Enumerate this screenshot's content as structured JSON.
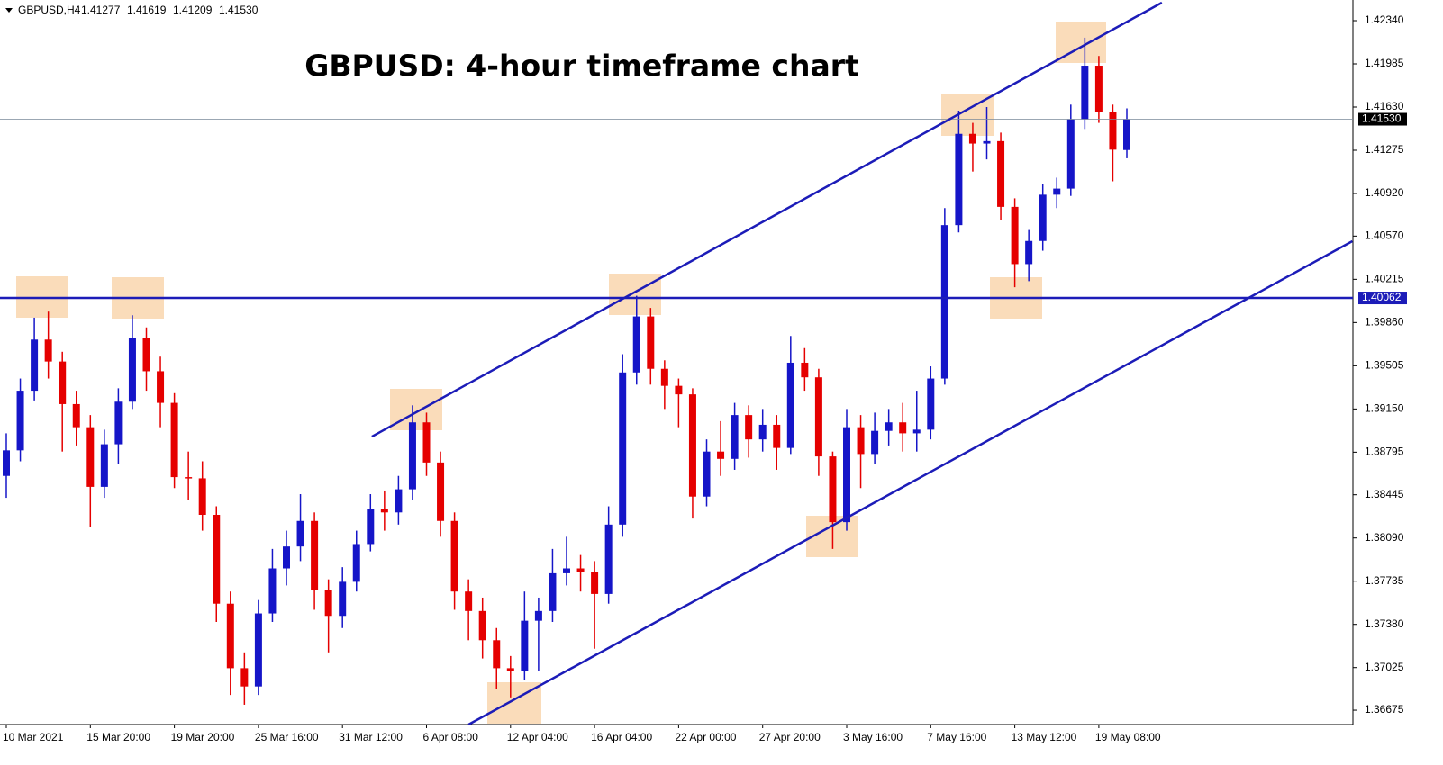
{
  "chart_data": {
    "type": "candlestick",
    "title": "GBPUSD: 4-hour timeframe chart",
    "header": [
      "GBPUSD,H4",
      "1.41277",
      "1.41619",
      "1.41209",
      "1.41530"
    ],
    "up_color": "#1515c8",
    "down_color": "#e50000",
    "categories": [
      "10 Mar 2021",
      null,
      null,
      null,
      null,
      null,
      "15 Mar 20:00",
      null,
      null,
      null,
      null,
      null,
      "19 Mar 20:00",
      null,
      null,
      null,
      null,
      null,
      "25 Mar 16:00",
      null,
      null,
      null,
      null,
      null,
      "31 Mar 12:00",
      null,
      null,
      null,
      null,
      null,
      "6 Apr 08:00",
      null,
      null,
      null,
      null,
      null,
      "12 Apr 04:00",
      null,
      null,
      null,
      null,
      null,
      "16 Apr 04:00",
      null,
      null,
      null,
      null,
      null,
      "22 Apr 00:00",
      null,
      null,
      null,
      null,
      null,
      "27 Apr 20:00",
      null,
      null,
      null,
      null,
      null,
      "3 May 16:00",
      null,
      null,
      null,
      null,
      null,
      "7 May 16:00",
      null,
      null,
      null,
      null,
      null,
      "13 May 12:00",
      null,
      null,
      null,
      null,
      null,
      "19 May 08:00",
      null,
      null
    ],
    "open": [
      1.386,
      1.3881,
      1.393,
      1.3972,
      1.3954,
      1.3919,
      1.39,
      1.3851,
      1.3886,
      1.3921,
      1.3973,
      1.3946,
      1.392,
      1.3859,
      1.3858,
      1.3828,
      1.3755,
      1.3702,
      1.3687,
      1.3747,
      1.3784,
      1.3802,
      1.3823,
      1.3766,
      1.3745,
      1.3773,
      1.3804,
      1.3833,
      1.383,
      1.3849,
      1.3904,
      1.3871,
      1.3823,
      1.3765,
      1.3749,
      1.3725,
      1.3702,
      1.37,
      1.3741,
      1.3749,
      1.378,
      1.3784,
      1.3781,
      1.3763,
      1.382,
      1.3945,
      1.3991,
      1.3948,
      1.3934,
      1.3927,
      1.3843,
      1.388,
      1.3874,
      1.391,
      1.389,
      1.3902,
      1.3883,
      1.3953,
      1.3941,
      1.3876,
      1.3822,
      1.39,
      1.3878,
      1.3897,
      1.3904,
      1.3895,
      1.3898,
      1.394,
      1.4066,
      1.4141,
      1.4133,
      1.4135,
      1.4081,
      1.4034,
      1.4053,
      1.4091,
      1.4096,
      1.4153,
      1.4197,
      1.4159,
      1.41277
    ],
    "high": [
      1.3895,
      1.394,
      1.399,
      1.3995,
      1.3962,
      1.393,
      1.391,
      1.3898,
      1.3932,
      1.3992,
      1.3982,
      1.3958,
      1.3928,
      1.388,
      1.3872,
      1.3835,
      1.3765,
      1.3715,
      1.3758,
      1.38,
      1.3815,
      1.3845,
      1.383,
      1.3775,
      1.3785,
      1.3815,
      1.3845,
      1.3848,
      1.386,
      1.3918,
      1.3912,
      1.388,
      1.383,
      1.3775,
      1.376,
      1.3735,
      1.3712,
      1.3765,
      1.376,
      1.38,
      1.381,
      1.3795,
      1.379,
      1.3835,
      1.396,
      1.4008,
      1.3998,
      1.3955,
      1.394,
      1.3932,
      1.389,
      1.3905,
      1.392,
      1.3918,
      1.3915,
      1.391,
      1.3975,
      1.3965,
      1.3948,
      1.388,
      1.3915,
      1.391,
      1.3912,
      1.3915,
      1.392,
      1.393,
      1.395,
      1.408,
      1.416,
      1.415,
      1.4163,
      1.4142,
      1.4088,
      1.4062,
      1.41,
      1.4105,
      1.4165,
      1.422,
      1.4205,
      1.4165,
      1.41619
    ],
    "low": [
      1.3842,
      1.3872,
      1.3922,
      1.394,
      1.388,
      1.3885,
      1.3818,
      1.3842,
      1.387,
      1.3915,
      1.393,
      1.39,
      1.385,
      1.384,
      1.3815,
      1.374,
      1.368,
      1.3672,
      1.368,
      1.374,
      1.377,
      1.379,
      1.375,
      1.3715,
      1.3735,
      1.3765,
      1.3798,
      1.3815,
      1.382,
      1.384,
      1.386,
      1.381,
      1.375,
      1.3725,
      1.371,
      1.3685,
      1.3678,
      1.3692,
      1.37,
      1.374,
      1.377,
      1.3765,
      1.3718,
      1.3755,
      1.381,
      1.3935,
      1.3935,
      1.3915,
      1.39,
      1.3825,
      1.3835,
      1.386,
      1.3865,
      1.3875,
      1.388,
      1.3865,
      1.3878,
      1.393,
      1.386,
      1.38,
      1.3815,
      1.385,
      1.387,
      1.3885,
      1.388,
      1.388,
      1.389,
      1.3935,
      1.406,
      1.411,
      1.412,
      1.407,
      1.4015,
      1.402,
      1.4045,
      1.408,
      1.409,
      1.4145,
      1.415,
      1.4102,
      1.41209
    ],
    "close": [
      1.3881,
      1.393,
      1.3972,
      1.3954,
      1.3919,
      1.39,
      1.3851,
      1.3886,
      1.3921,
      1.3973,
      1.3946,
      1.392,
      1.3859,
      1.3858,
      1.3828,
      1.3755,
      1.3702,
      1.3687,
      1.3747,
      1.3784,
      1.3802,
      1.3823,
      1.3766,
      1.3745,
      1.3773,
      1.3804,
      1.3833,
      1.383,
      1.3849,
      1.3904,
      1.3871,
      1.3823,
      1.3765,
      1.3749,
      1.3725,
      1.3702,
      1.37,
      1.3741,
      1.3749,
      1.378,
      1.3784,
      1.3781,
      1.3763,
      1.382,
      1.3945,
      1.3991,
      1.3948,
      1.3934,
      1.3927,
      1.3843,
      1.388,
      1.3874,
      1.391,
      1.389,
      1.3902,
      1.3883,
      1.3953,
      1.3941,
      1.3876,
      1.3822,
      1.39,
      1.3878,
      1.3897,
      1.3904,
      1.3895,
      1.3898,
      1.394,
      1.4066,
      1.4141,
      1.4133,
      1.4135,
      1.4081,
      1.4034,
      1.4053,
      1.4091,
      1.4096,
      1.4153,
      1.4197,
      1.4159,
      1.4128,
      1.4153
    ],
    "ylim": [
      1.36557,
      1.4251
    ],
    "yticks": [
      {
        "value": 1.4234,
        "label": "1.42340"
      },
      {
        "value": 1.41985,
        "label": "1.41985"
      },
      {
        "value": 1.4163,
        "label": "1.41630"
      },
      {
        "value": 1.41275,
        "label": "1.41275"
      },
      {
        "value": 1.4092,
        "label": "1.40920"
      },
      {
        "value": 1.4057,
        "label": "1.40570"
      },
      {
        "value": 1.40215,
        "label": "1.40215"
      },
      {
        "value": 1.3986,
        "label": "1.39860"
      },
      {
        "value": 1.39505,
        "label": "1.39505"
      },
      {
        "value": 1.3915,
        "label": "1.39150"
      },
      {
        "value": 1.38795,
        "label": "1.38795"
      },
      {
        "value": 1.38445,
        "label": "1.38445"
      },
      {
        "value": 1.3809,
        "label": "1.38090"
      },
      {
        "value": 1.37735,
        "label": "1.37735"
      },
      {
        "value": 1.3738,
        "label": "1.37380"
      },
      {
        "value": 1.37025,
        "label": "1.37025"
      },
      {
        "value": 1.36675,
        "label": "1.36675"
      }
    ],
    "levels": [
      {
        "value": 1.4153,
        "label": "1.41530",
        "color": "#7a8a9a"
      },
      {
        "value": 1.40062,
        "label": "1.40062",
        "color": "#1c1cb8"
      }
    ],
    "trendlines": [
      {
        "x": [
          26.1,
          82.5
        ],
        "y": [
          1.38923,
          1.42488
        ],
        "color": "#1c1cb8"
      },
      {
        "x": [
          33.0,
          96.1
        ],
        "y": [
          1.36557,
          1.40528
        ],
        "color": "#1c1cb8"
      }
    ]
  }
}
